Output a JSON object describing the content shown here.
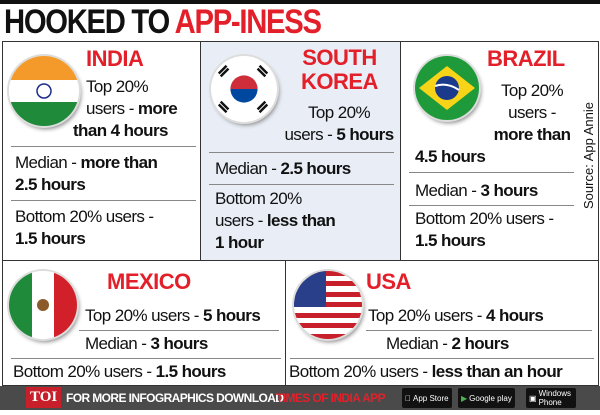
{
  "title": {
    "black": "HOOKED TO ",
    "red": "APP-INESS"
  },
  "source": "Source: App Annie",
  "india": {
    "name": "INDIA",
    "top_a": "Top 20%",
    "top_b": "users - ",
    "top_c": "more",
    "top_d": "than 4 hours",
    "median_a": "Median - ",
    "median_b": "more than",
    "median_c": "2.5 hours",
    "bottom_a": "Bottom 20% users -",
    "bottom_b": "1.5 hours"
  },
  "korea": {
    "name_a": "SOUTH",
    "name_b": "KOREA",
    "top_a": "Top 20%",
    "top_b": "users - ",
    "top_c": "5 hours",
    "median_a": "Median - ",
    "median_b": "2.5 hours",
    "bottom_a": "Bottom 20%",
    "bottom_b": "users - ",
    "bottom_c": "less than",
    "bottom_d": "1 hour"
  },
  "brazil": {
    "name": "BRAZIL",
    "top_a": "Top 20%",
    "top_b": "users -",
    "top_c": "more than",
    "top_d": "4.5 hours",
    "median_a": "Median - ",
    "median_b": "3 hours",
    "bottom_a": "Bottom 20% users -",
    "bottom_b": "1.5 hours"
  },
  "mexico": {
    "name": "MEXICO",
    "top_a": "Top 20% users - ",
    "top_b": "5 hours",
    "median_a": "Median - ",
    "median_b": "3 hours",
    "bottom_a": "Bottom 20% users - ",
    "bottom_b": "1.5 hours"
  },
  "usa": {
    "name": "USA",
    "top_a": "Top 20% users - ",
    "top_b": "4 hours",
    "median_a": "Median - ",
    "median_b": "2 hours",
    "bottom_a": "Bottom 20% users - ",
    "bottom_b": "less than an hour"
  },
  "footer": {
    "logo": "TOI",
    "text": "FOR MORE INFOGRAPHICS DOWNLOAD",
    "app": "TIMES OF INDIA APP",
    "appstore": "App Store",
    "googleplay": "Google play",
    "windows": "Windows Phone"
  },
  "colors": {
    "accent": "#e3202a",
    "korea_bg": "#e8edf6",
    "footer_bg": "#4a4a4a"
  }
}
